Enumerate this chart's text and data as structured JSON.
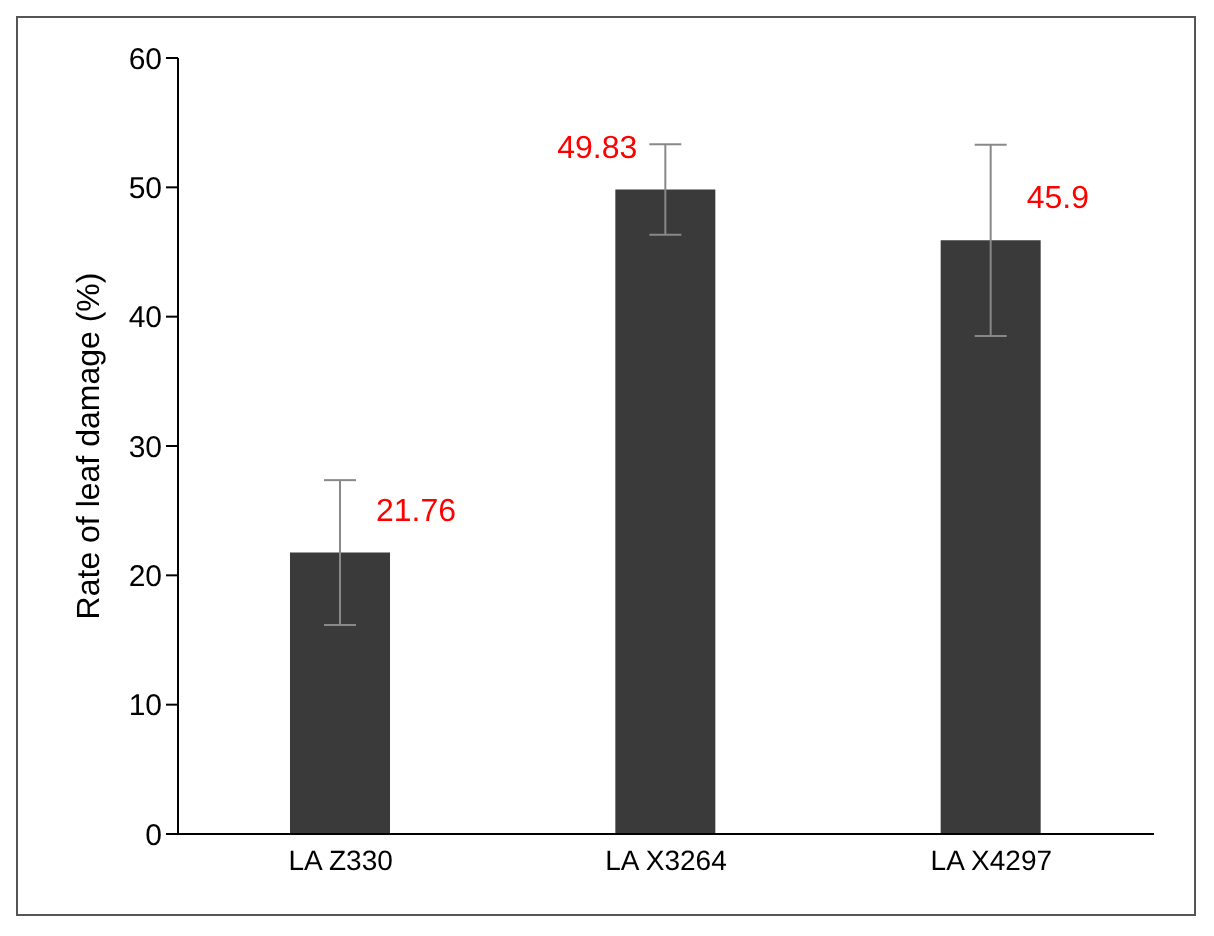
{
  "chart_data": {
    "type": "bar",
    "ylabel": "Rate of leaf damage (%)",
    "categories": [
      "LA Z330",
      "LA X3264",
      "LA X4297"
    ],
    "values": [
      21.76,
      49.83,
      45.9
    ],
    "errors": [
      5.6,
      3.5,
      7.4
    ],
    "color": "#3a3a3a",
    "ylim": [
      0,
      60
    ],
    "yticks": [
      0,
      10,
      20,
      30,
      40,
      50,
      60
    ],
    "data_labels": true
  }
}
